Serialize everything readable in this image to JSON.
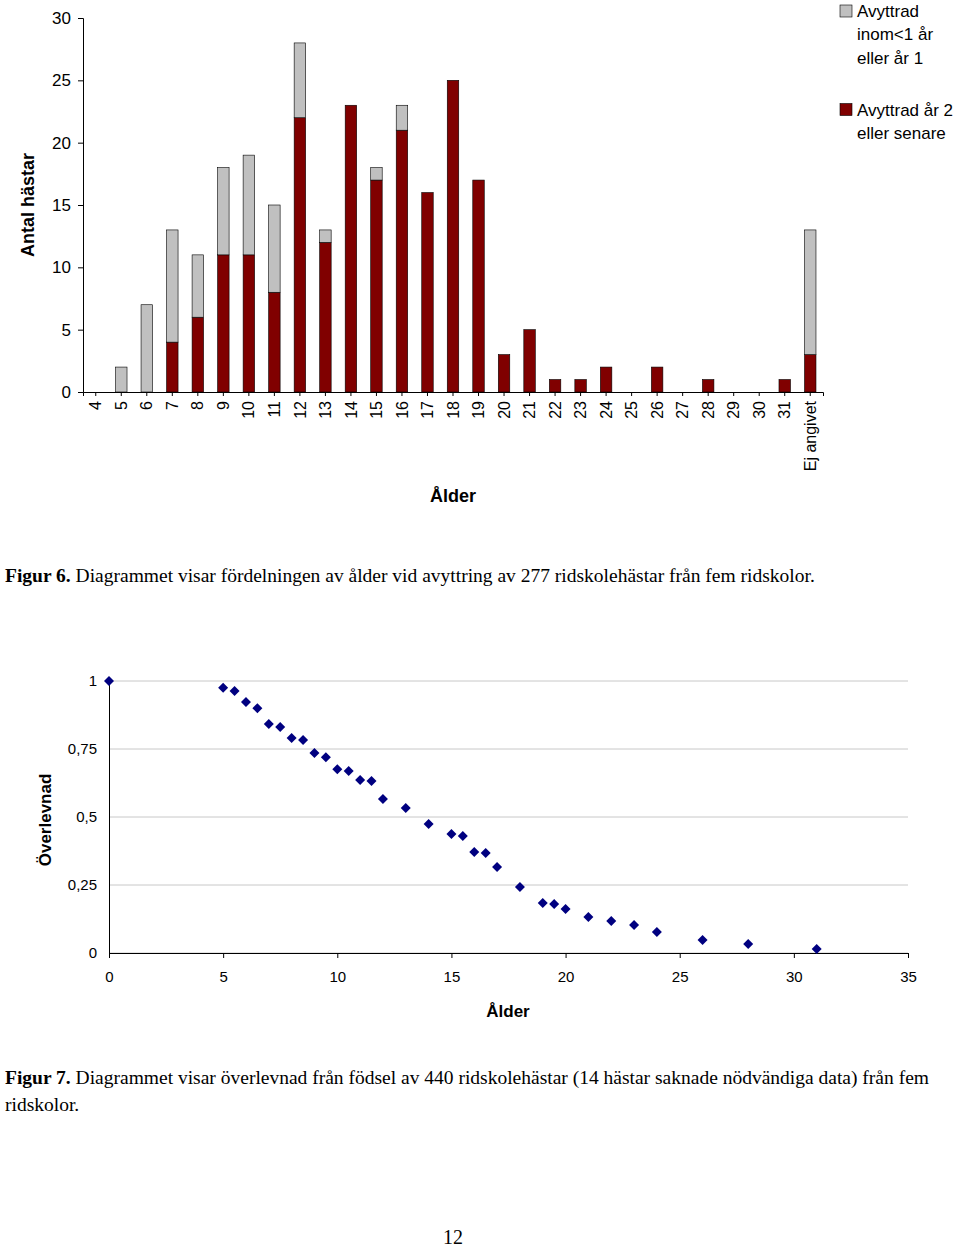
{
  "chart_data": [
    {
      "type": "bar",
      "stacked": true,
      "legend": "right",
      "y_label": "Antal hästar",
      "x_label": "Ålder",
      "caption_label": "Figur 6.",
      "caption": "Diagrammet visar fördelningen av ålder vid avyttring av 277 ridskolehästar från fem ridskolor.",
      "categories": [
        "4",
        "5",
        "6",
        "7",
        "8",
        "9",
        "10",
        "11",
        "12",
        "13",
        "14",
        "15",
        "16",
        "17",
        "18",
        "19",
        "20",
        "21",
        "22",
        "23",
        "24",
        "25",
        "26",
        "27",
        "28",
        "29",
        "30",
        "31",
        "Ej angivet"
      ],
      "series": [
        {
          "name": "Avyttrad år 2 eller senare",
          "color": "#800000",
          "values": [
            0,
            0,
            0,
            4,
            6,
            11,
            11,
            8,
            22,
            12,
            23,
            17,
            21,
            16,
            25,
            17,
            3,
            5,
            1,
            1,
            2,
            0,
            2,
            0,
            1,
            0,
            0,
            1,
            3
          ]
        },
        {
          "name": "Avyttrad inom<1 år eller år 1",
          "color": "#c0c0c0",
          "values": [
            0,
            2,
            7,
            9,
            5,
            7,
            8,
            7,
            6,
            1,
            0,
            1,
            2,
            0,
            0,
            0,
            0,
            0,
            0,
            0,
            0,
            0,
            0,
            0,
            0,
            0,
            0,
            0,
            10
          ]
        }
      ],
      "ylim": [
        0,
        30
      ],
      "yticks": [
        0,
        5,
        10,
        15,
        20,
        25,
        30
      ],
      "grid": false
    },
    {
      "type": "scatter",
      "marker": "diamond",
      "color": "#000080",
      "y_label": "Överlevnad",
      "x_label": "Ålder",
      "caption_label": "Figur 7.",
      "caption": "Diagrammet visar överlevnad från födsel av 440 ridskolehästar (14 hästar saknade nödvändiga data) från fem ridskolor.",
      "x": [
        0,
        5,
        5.5,
        6,
        6.5,
        7,
        7.5,
        8,
        8.5,
        9,
        9.5,
        10,
        10.5,
        11,
        11.5,
        12,
        13,
        14,
        15,
        15.5,
        16,
        16.5,
        17,
        18,
        19,
        19.5,
        20,
        21,
        22,
        23,
        24,
        26,
        28,
        31
      ],
      "values": [
        1,
        0.975,
        0.963,
        0.923,
        0.9,
        0.842,
        0.831,
        0.79,
        0.783,
        0.735,
        0.72,
        0.676,
        0.669,
        0.636,
        0.632,
        0.566,
        0.533,
        0.474,
        0.4375,
        0.43,
        0.371,
        0.368,
        0.316,
        0.243,
        0.184,
        0.18,
        0.162,
        0.132,
        0.118,
        0.103,
        0.077,
        0.048,
        0.033,
        0.015
      ],
      "xlim": [
        0,
        35
      ],
      "xticks": [
        0,
        5,
        10,
        15,
        20,
        25,
        30,
        35
      ],
      "ylim": [
        0,
        1
      ],
      "yticks": [
        {
          "value": 0,
          "label": "0"
        },
        {
          "value": 0.25,
          "label": "0,25"
        },
        {
          "value": 0.5,
          "label": "0,5"
        },
        {
          "value": 0.75,
          "label": "0,75"
        },
        {
          "value": 1,
          "label": "1"
        }
      ],
      "grid": true
    }
  ],
  "page": {
    "number": 12
  }
}
